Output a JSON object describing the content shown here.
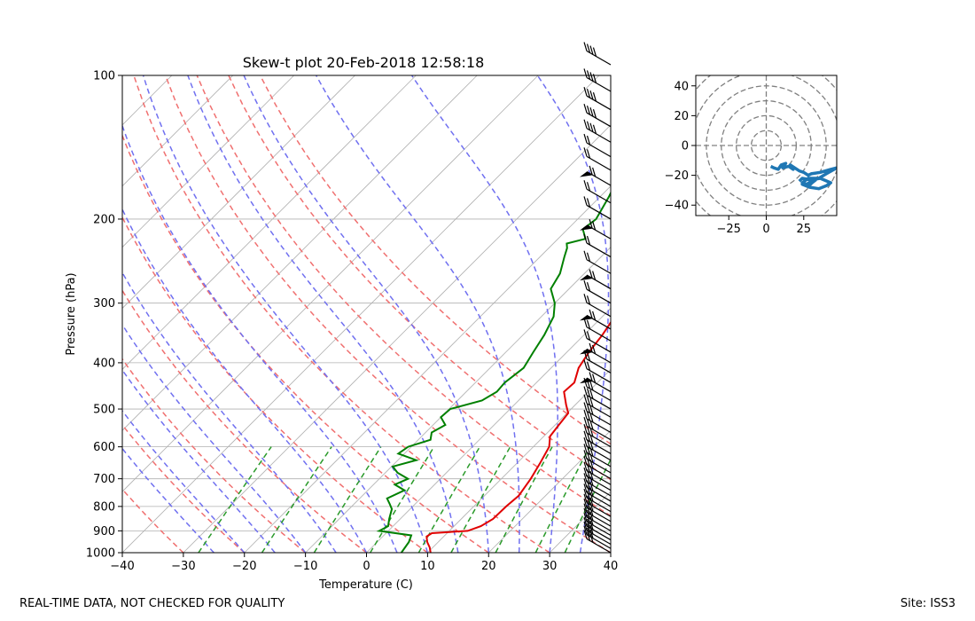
{
  "chart_data": [
    {
      "type": "skew-t",
      "title": "Skew-t plot 20-Feb-2018 12:58:18",
      "xlabel": "Temperature (C)",
      "ylabel": "Pressure (hPa)",
      "xlim": [
        -40,
        40
      ],
      "ylim": [
        1000,
        100
      ],
      "yscale": "log",
      "x_ticks": [
        -40,
        -30,
        -20,
        -10,
        0,
        10,
        20,
        30,
        40
      ],
      "y_ticks": [
        1000,
        900,
        800,
        700,
        600,
        500,
        400,
        300,
        200,
        100
      ],
      "grid": true,
      "colors": {
        "temperature": "#e00000",
        "dewpoint": "#008000",
        "dry_adiabat": "#f07070",
        "moist_adiabat": "#7070f0",
        "mixing_ratio": "#2a9a2a",
        "isotherm": "#b0b0b0",
        "barb": "#000000"
      },
      "temperature": [
        [
          1000,
          10.5
        ],
        [
          975,
          9.5
        ],
        [
          950,
          8.2
        ],
        [
          925,
          7.2
        ],
        [
          910,
          7.5
        ],
        [
          900,
          13
        ],
        [
          880,
          14.4
        ],
        [
          850,
          15.2
        ],
        [
          800,
          15.3
        ],
        [
          760,
          15.6
        ],
        [
          700,
          14.8
        ],
        [
          650,
          13.8
        ],
        [
          600,
          12.6
        ],
        [
          570,
          11
        ],
        [
          540,
          10.6
        ],
        [
          510,
          10.2
        ],
        [
          490,
          8.5
        ],
        [
          460,
          6
        ],
        [
          440,
          6.2
        ],
        [
          410,
          4.5
        ],
        [
          380,
          3.6
        ],
        [
          350,
          3
        ],
        [
          320,
          2
        ],
        [
          300,
          0.5
        ],
        [
          280,
          -1.4
        ],
        [
          260,
          -2.8
        ],
        [
          240,
          -4
        ],
        [
          220,
          -4.8
        ],
        [
          200,
          -5
        ],
        [
          185,
          -5
        ],
        [
          175,
          -3
        ],
        [
          165,
          -0.6
        ],
        [
          155,
          2
        ],
        [
          145,
          4.6
        ],
        [
          135,
          7.5
        ],
        [
          130,
          8.2
        ],
        [
          128,
          12
        ],
        [
          125,
          13.5
        ],
        [
          115,
          13.2
        ],
        [
          110,
          14.5
        ],
        [
          105,
          16
        ],
        [
          100,
          18.5
        ]
      ],
      "dewpoint": [
        [
          1000,
          5.7
        ],
        [
          950,
          5.2
        ],
        [
          920,
          4.5
        ],
        [
          900,
          -1.5
        ],
        [
          880,
          -0.8
        ],
        [
          850,
          -1.8
        ],
        [
          810,
          -3
        ],
        [
          790,
          -4.2
        ],
        [
          770,
          -5.5
        ],
        [
          740,
          -4
        ],
        [
          720,
          -6.5
        ],
        [
          700,
          -5.3
        ],
        [
          680,
          -8
        ],
        [
          660,
          -9.8
        ],
        [
          640,
          -7
        ],
        [
          620,
          -11
        ],
        [
          600,
          -10.5
        ],
        [
          580,
          -8
        ],
        [
          560,
          -9
        ],
        [
          540,
          -8
        ],
        [
          520,
          -10
        ],
        [
          500,
          -9.8
        ],
        [
          480,
          -6
        ],
        [
          460,
          -5
        ],
        [
          440,
          -5.2
        ],
        [
          410,
          -4.5
        ],
        [
          380,
          -5.5
        ],
        [
          350,
          -6.5
        ],
        [
          320,
          -8
        ],
        [
          300,
          -10
        ],
        [
          280,
          -13
        ],
        [
          260,
          -14
        ],
        [
          240,
          -16
        ],
        [
          230,
          -17
        ],
        [
          225,
          -17.8
        ],
        [
          220,
          -15.5
        ],
        [
          210,
          -17.5
        ],
        [
          200,
          -17
        ],
        [
          180,
          -18.5
        ],
        [
          170,
          -19.5
        ],
        [
          160,
          -20.5
        ],
        [
          150,
          -21
        ],
        [
          140,
          -20.5
        ],
        [
          130,
          -19.5
        ],
        [
          120,
          -18
        ],
        [
          110,
          -16
        ],
        [
          100,
          -12
        ]
      ],
      "wind_barb_pressures": [
        1000,
        980,
        960,
        940,
        920,
        900,
        880,
        860,
        840,
        820,
        800,
        780,
        760,
        740,
        720,
        700,
        680,
        660,
        640,
        620,
        600,
        580,
        560,
        540,
        520,
        500,
        480,
        460,
        440,
        420,
        400,
        380,
        360,
        340,
        320,
        300,
        280,
        260,
        240,
        220,
        200,
        185,
        170,
        158,
        148,
        138,
        128,
        118,
        108,
        95
      ]
    },
    {
      "type": "hodograph",
      "xlim": [
        -47,
        47
      ],
      "ylim": [
        -47,
        47
      ],
      "x_ticks": [
        -25,
        0,
        25
      ],
      "y_ticks": [
        40,
        20,
        0,
        -20,
        -40
      ],
      "ring_radii": [
        10,
        20,
        30,
        40,
        50,
        60
      ],
      "color": "#1f77b4",
      "u": [
        3,
        5,
        8,
        10,
        13,
        11,
        15,
        18,
        16,
        22,
        25,
        28,
        30,
        36,
        43,
        47,
        40,
        35,
        28,
        24,
        27,
        30,
        33,
        28,
        24,
        29,
        35,
        40,
        43,
        36,
        30,
        24,
        22
      ],
      "v": [
        -14,
        -15,
        -16,
        -13,
        -12,
        -15,
        -14,
        -16,
        -13,
        -17,
        -18,
        -20,
        -19,
        -18,
        -16,
        -15,
        -19,
        -22,
        -22,
        -25,
        -26,
        -24,
        -23,
        -27,
        -26,
        -28,
        -29,
        -27,
        -25,
        -22,
        -23,
        -22,
        -24
      ]
    }
  ],
  "footer": {
    "left": "REAL-TIME DATA, NOT CHECKED FOR QUALITY",
    "right": "Site: ISS3"
  }
}
